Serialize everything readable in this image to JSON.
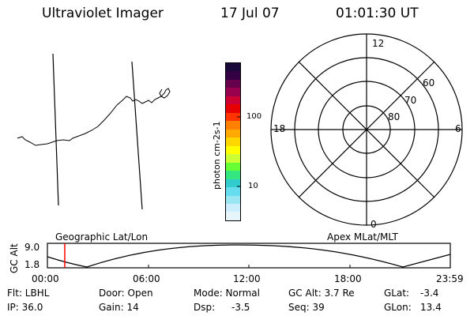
{
  "header": {
    "instrument": "Ultraviolet Imager",
    "date": "17 Jul 07",
    "time": "01:01:30 UT"
  },
  "colorbar": {
    "unit_label": "photon cm-2s-1",
    "ticks": [
      "100",
      "10"
    ],
    "colors": [
      "#1a0a3a",
      "#330044",
      "#66004d",
      "#99004d",
      "#cc0033",
      "#e60000",
      "#ff3300",
      "#ff8000",
      "#ffaa00",
      "#ffd700",
      "#ffff00",
      "#ccff33",
      "#66ff33",
      "#33e680",
      "#33cccc",
      "#66ddee",
      "#99e6f2",
      "#cceeff",
      "#e6f5fa"
    ]
  },
  "polar": {
    "labels": {
      "top": "12",
      "bottom": "0",
      "left": "18",
      "right": "6"
    },
    "lat_rings": [
      "80",
      "70",
      "60"
    ]
  },
  "strip": {
    "left_label": "Geographic Lat/Lon",
    "right_label": "Apex MLat/MLT",
    "y_axis_label": "GC Alt",
    "y_ticks": [
      "9.0",
      "1.8"
    ],
    "x_ticks": [
      "00:00",
      "06:00",
      "12:00",
      "18:00",
      "23:59"
    ],
    "marker_color": "#ff0000"
  },
  "footer": {
    "row1": {
      "flt": "Flt: LBHL",
      "door": "Door: Open",
      "mode": "Mode: Normal",
      "gc_alt": "GC Alt: 3.7 Re",
      "glat": "GLat:",
      "glat_val": "-3.4"
    },
    "row2": {
      "ip": "IP: 36.0",
      "gain": "Gain: 14",
      "dsp": "Dsp:",
      "dsp_val": "-3.5",
      "seq": "Seq: 39",
      "glon": "GLon:",
      "glon_val": "13.4"
    }
  }
}
